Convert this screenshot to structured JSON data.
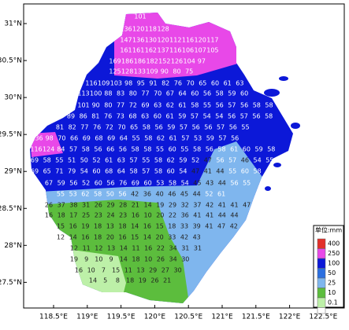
{
  "map": {
    "xticks": [
      {
        "value": 118.5,
        "label": "118.5°E"
      },
      {
        "value": 119,
        "label": "119°E"
      },
      {
        "value": 119.5,
        "label": "119.5°E"
      },
      {
        "value": 120,
        "label": "120°E"
      },
      {
        "value": 120.5,
        "label": "120.5°E"
      },
      {
        "value": 121,
        "label": "121°E"
      },
      {
        "value": 121.5,
        "label": "121.5°E"
      },
      {
        "value": 122,
        "label": "122°E"
      },
      {
        "value": 122.5,
        "label": "122.5°E"
      }
    ],
    "yticks": [
      {
        "value": 31,
        "label": "31°N"
      },
      {
        "value": 30.5,
        "label": "30.5°N"
      },
      {
        "value": 30,
        "label": "30°N"
      },
      {
        "value": 29.5,
        "label": "29.5°N"
      },
      {
        "value": 29,
        "label": "29°N"
      },
      {
        "value": 28.5,
        "label": "28.5°N"
      },
      {
        "value": 28,
        "label": "28°N"
      },
      {
        "value": 27.5,
        "label": "27.5°N"
      }
    ],
    "grid_rows": [
      [
        101
      ],
      [
        136,
        120,
        118,
        128
      ],
      [
        147,
        136,
        130,
        120,
        112,
        116,
        120,
        117
      ],
      [
        161,
        161,
        162,
        137,
        116,
        106,
        107,
        105
      ],
      [
        169,
        186,
        186,
        182,
        152,
        126,
        104,
        97
      ],
      [
        125,
        128,
        133,
        109,
        90,
        80,
        75
      ],
      [
        116,
        109,
        103,
        98,
        95,
        91,
        82,
        76,
        70,
        65,
        60,
        61,
        63
      ],
      [
        113,
        100,
        88,
        83,
        80,
        77,
        70,
        67,
        64,
        60,
        56,
        58,
        59,
        60
      ],
      [
        101,
        90,
        80,
        77,
        72,
        69,
        63,
        62,
        61,
        58,
        55,
        56,
        57,
        56,
        58,
        58
      ],
      [
        89,
        86,
        81,
        76,
        73,
        68,
        63,
        60,
        61,
        59,
        57,
        54,
        54,
        56,
        57,
        56,
        58
      ],
      [
        81,
        82,
        77,
        76,
        72,
        70,
        65,
        58,
        56,
        59,
        57,
        56,
        56,
        57,
        56,
        55
      ],
      [
        136,
        98,
        70,
        66,
        69,
        68,
        69,
        64,
        55,
        58,
        62,
        61,
        57,
        53,
        59,
        57,
        56
      ],
      [
        116,
        124,
        84,
        57,
        58,
        56,
        66,
        56,
        58,
        58,
        55,
        60,
        55,
        58,
        56,
        58,
        61,
        60,
        59,
        58
      ],
      [
        69,
        58,
        55,
        51,
        50,
        52,
        61,
        63,
        57,
        55,
        58,
        62,
        59,
        52,
        47,
        56,
        57,
        46,
        54,
        55,
        58
      ],
      [
        69,
        65,
        71,
        79,
        54,
        60,
        68,
        64,
        58,
        57,
        58,
        60,
        54,
        47,
        41,
        44,
        55,
        60,
        58
      ],
      [
        67,
        59,
        56,
        52,
        60,
        56,
        76,
        69,
        60,
        53,
        58,
        54,
        45,
        43,
        44,
        56,
        55
      ],
      [
        55,
        53,
        62,
        58,
        50,
        56,
        42,
        36,
        40,
        46,
        45,
        44,
        52,
        61
      ],
      [
        26,
        37,
        38,
        31,
        26,
        29,
        28,
        21,
        14,
        19,
        29,
        32,
        37,
        42,
        41,
        41,
        47
      ],
      [
        16,
        18,
        17,
        25,
        23,
        24,
        23,
        16,
        10,
        20,
        22,
        36,
        41,
        41,
        44,
        44
      ],
      [
        15,
        16,
        19,
        18,
        13,
        18,
        14,
        16,
        15,
        18,
        33,
        39,
        41,
        47,
        42
      ],
      [
        12,
        14,
        16,
        18,
        20,
        16,
        15,
        14,
        20,
        33,
        42,
        43
      ],
      [
        12,
        11,
        12,
        13,
        14,
        11,
        16,
        22,
        34,
        31,
        31
      ],
      [
        19,
        9,
        10,
        9,
        14,
        18,
        10,
        26,
        34,
        30
      ],
      [
        16,
        10,
        7,
        15,
        11,
        13,
        29,
        27,
        30
      ],
      [
        14,
        5,
        8,
        18,
        19,
        26,
        21
      ]
    ],
    "legend": {
      "title": "单位:mm",
      "labels": [
        "400",
        "250",
        "100",
        "50",
        "25",
        "10",
        "0.1"
      ],
      "colors": [
        "#e2302a",
        "#e848e8",
        "#0c18d8",
        "#2b6fe0",
        "#7fb6ee",
        "#5cbd3d",
        "#bdf0a8"
      ]
    }
  }
}
